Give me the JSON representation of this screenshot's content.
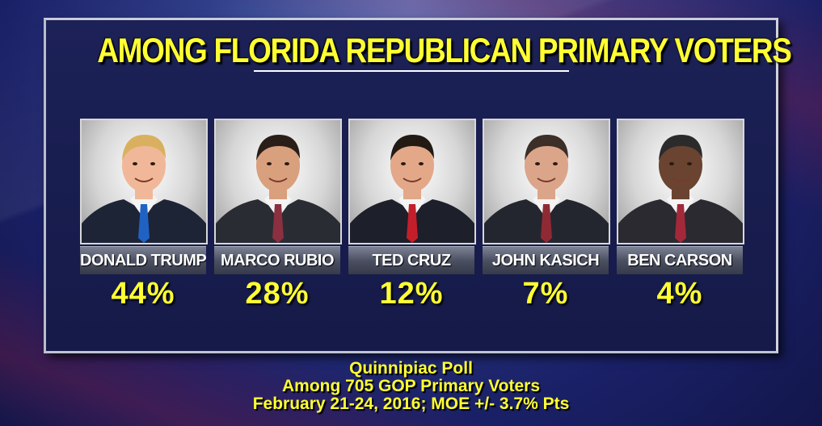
{
  "title": "AMONG FLORIDA REPUBLICAN PRIMARY VOTERS",
  "candidates": [
    {
      "name": "DONALD TRUMP",
      "percent": "44%",
      "hair": "#d9b060",
      "tie": "#1f62c4",
      "skin": "#f0b898",
      "suit": "#1d2436"
    },
    {
      "name": "MARCO RUBIO",
      "percent": "28%",
      "hair": "#2a1f18",
      "tie": "#8a3040",
      "skin": "#d9a07e",
      "suit": "#2a2c34"
    },
    {
      "name": "TED CRUZ",
      "percent": "12%",
      "hair": "#231a14",
      "tie": "#c21f2a",
      "skin": "#e2a888",
      "suit": "#1d1f2a"
    },
    {
      "name": "JOHN KASICH",
      "percent": "7%",
      "hair": "#3b2f28",
      "tie": "#8f2a34",
      "skin": "#dba58a",
      "suit": "#24262f"
    },
    {
      "name": "BEN CARSON",
      "percent": "4%",
      "hair": "#2b2b2b",
      "tie": "#a3283a",
      "skin": "#6a4431",
      "suit": "#2a2a30"
    }
  ],
  "footer": {
    "line1": "Quinnipiac Poll",
    "line2": "Among 705 GOP Primary Voters",
    "line3": "February 21-24, 2016; MOE +/- 3.7% Pts"
  }
}
